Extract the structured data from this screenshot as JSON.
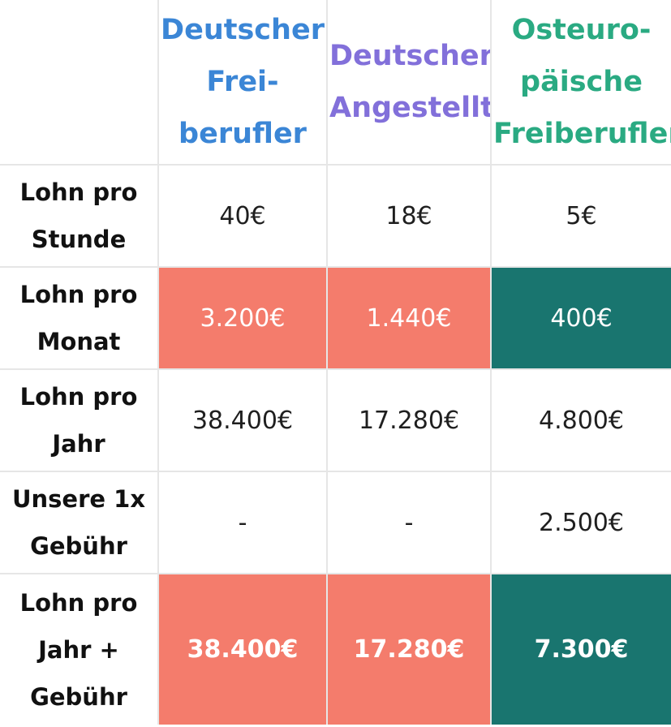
{
  "chart_data": {
    "type": "table",
    "columns": [
      {
        "label": "Deutscher\nFrei-\nberufler",
        "color": "#3b86d6"
      },
      {
        "label": "Deutscher\nAngestellte",
        "color": "#8270da"
      },
      {
        "label": "Osteuro-\npäische\nFreiberufler",
        "color": "#2aaa82"
      }
    ],
    "rows": [
      {
        "label": "Lohn pro\nStunde",
        "values": [
          "40€",
          "18€",
          "5€"
        ],
        "highlight": false,
        "bold": false
      },
      {
        "label": "Lohn pro\nMonat",
        "values": [
          "3.200€",
          "1.440€",
          "400€"
        ],
        "highlight": true,
        "bold": false
      },
      {
        "label": "Lohn pro\nJahr",
        "values": [
          "38.400€",
          "17.280€",
          "4.800€"
        ],
        "highlight": false,
        "bold": false
      },
      {
        "label": "Unsere 1x\nGebühr",
        "values": [
          "-",
          "-",
          "2.500€"
        ],
        "highlight": false,
        "bold": false
      },
      {
        "label": "Lohn pro\nJahr +\nGebühr",
        "values": [
          "38.400€",
          "17.280€",
          "7.300€"
        ],
        "highlight": true,
        "bold": true
      }
    ],
    "highlight_colors": [
      "#f47c6c",
      "#f47c6c",
      "#19756f"
    ]
  }
}
